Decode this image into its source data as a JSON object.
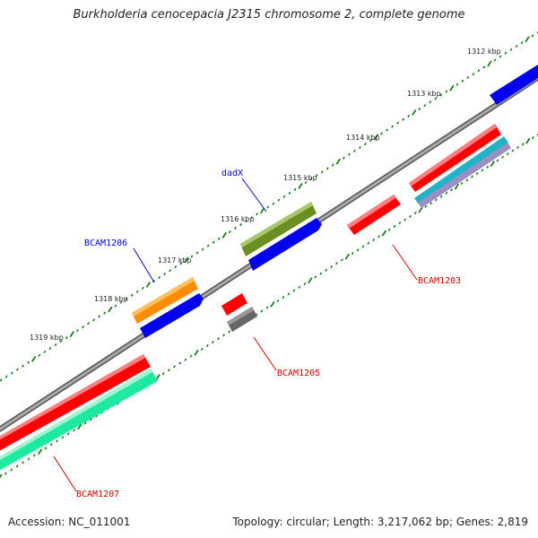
{
  "title": "Burkholderia cenocepacia J2315 chromosome 2, complete genome",
  "footer": {
    "accession": "Accession: NC_011001",
    "topology": "Topology: circular; Length: 3,217,062 bp; Genes: 2,819"
  },
  "scale_labels": [
    "1312 kbp",
    "1313 kbp",
    "1314 kbp",
    "1315 kbp",
    "1316 kbp",
    "1317 kbp",
    "1318 kbp",
    "1319 kbp"
  ],
  "gene_labels": [
    {
      "name": "dadX",
      "color": "#0000cc"
    },
    {
      "name": "BCAM1206",
      "color": "#0000cc"
    },
    {
      "name": "BCAM1203",
      "color": "#cc0000"
    },
    {
      "name": "BCAM1205",
      "color": "#cc0000"
    },
    {
      "name": "BCAM1207",
      "color": "#cc0000"
    }
  ],
  "colors": {
    "backbone": "#8a8a8a",
    "tick": "#1f7a1f",
    "red_feature": "#ff0000",
    "blue_feature": "#0000ee",
    "olive_feature": "#6b8e23",
    "orange_feature": "#ff8c00",
    "green_feature": "#1de9a0",
    "gray_feature": "#666666",
    "cyan_feature": "#20b2c8",
    "lavender_feature": "#9a8fc0"
  }
}
